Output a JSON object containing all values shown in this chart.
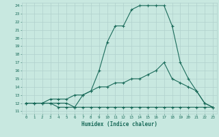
{
  "xlabel": "Humidex (Indice chaleur)",
  "bg_color": "#c8e8e0",
  "grid_color": "#b0d0cc",
  "line_color": "#1a6b5a",
  "xlim_min": -0.5,
  "xlim_max": 23.5,
  "ylim_min": 10.7,
  "ylim_max": 24.35,
  "xticks": [
    0,
    1,
    2,
    3,
    4,
    5,
    6,
    7,
    8,
    9,
    10,
    11,
    12,
    13,
    14,
    15,
    16,
    17,
    18,
    19,
    20,
    21,
    22,
    23
  ],
  "yticks": [
    11,
    12,
    13,
    14,
    15,
    16,
    17,
    18,
    19,
    20,
    21,
    22,
    23,
    24
  ],
  "curve_top_x": [
    0,
    1,
    2,
    3,
    4,
    5,
    6,
    7,
    8,
    9,
    10,
    11,
    12,
    13,
    14,
    15,
    16,
    17,
    18,
    19,
    20,
    21,
    22,
    23
  ],
  "curve_top_y": [
    12,
    12,
    12,
    12,
    12,
    12,
    11.5,
    13,
    13.5,
    16,
    19.5,
    21.5,
    21.5,
    23.5,
    24,
    24,
    24,
    24,
    21.5,
    17,
    15,
    13.5,
    12,
    11.5
  ],
  "curve_mid_x": [
    0,
    1,
    2,
    3,
    4,
    5,
    6,
    7,
    8,
    9,
    10,
    11,
    12,
    13,
    14,
    15,
    16,
    17,
    18,
    19,
    20,
    21,
    22,
    23
  ],
  "curve_mid_y": [
    12,
    12,
    12,
    12.5,
    12.5,
    12.5,
    13,
    13,
    13.5,
    14,
    14,
    14.5,
    14.5,
    15,
    15,
    15.5,
    16,
    17,
    15,
    14.5,
    14,
    13.5,
    12,
    11.5
  ],
  "curve_bot_x": [
    0,
    1,
    2,
    3,
    4,
    5,
    6,
    7,
    8,
    9,
    10,
    11,
    12,
    13,
    14,
    15,
    16,
    17,
    18,
    19,
    20,
    21,
    22,
    23
  ],
  "curve_bot_y": [
    12,
    12,
    12,
    12,
    11.5,
    11.5,
    11.5,
    11.5,
    11.5,
    11.5,
    11.5,
    11.5,
    11.5,
    11.5,
    11.5,
    11.5,
    11.5,
    11.5,
    11.5,
    11.5,
    11.5,
    11.5,
    11.5,
    11.5
  ]
}
